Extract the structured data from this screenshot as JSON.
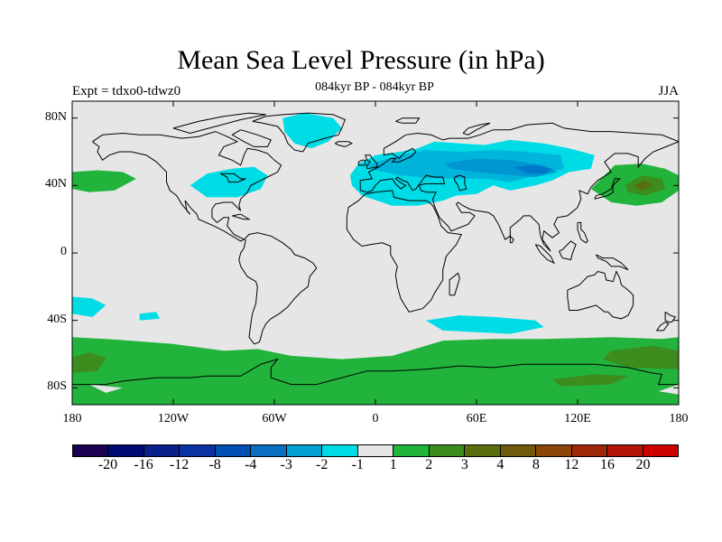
{
  "title": "Mean Sea Level Pressure (in hPa)",
  "subtitle": "084kyr BP - 084kyr BP",
  "experiment_label": "Expt = tdxo0-tdwz0",
  "season": "JJA",
  "map": {
    "projection": "cylindrical-equidistant",
    "lon_range": [
      -180,
      180
    ],
    "lat_range": [
      -90,
      90
    ],
    "x_ticks": [
      {
        "lon": -180,
        "label": "180"
      },
      {
        "lon": -120,
        "label": "120W"
      },
      {
        "lon": -60,
        "label": "60W"
      },
      {
        "lon": 0,
        "label": "0"
      },
      {
        "lon": 60,
        "label": "60E"
      },
      {
        "lon": 120,
        "label": "120E"
      },
      {
        "lon": 180,
        "label": "180"
      }
    ],
    "y_ticks": [
      {
        "lat": 80,
        "label": "80N"
      },
      {
        "lat": 40,
        "label": "40N"
      },
      {
        "lat": 0,
        "label": "0"
      },
      {
        "lat": -40,
        "label": "40S"
      },
      {
        "lat": -80,
        "label": "80S"
      }
    ],
    "colors": {
      "background": "#e6e6e6",
      "neg_1": "#00dce6",
      "neg_2": "#00b4dc",
      "neg_3": "#0096d2",
      "neg_4": "#0078c8",
      "pos_1": "#22b33c",
      "pos_2": "#3c8c1e",
      "pos_3": "#5a6e0f",
      "coast": "#000000"
    },
    "anomalies": [
      {
        "region": "Eurasia",
        "bounds_lon": [
          -15,
          135
        ],
        "bounds_lat": [
          25,
          70
        ],
        "level": "-3 to -1"
      },
      {
        "region": "Greenland",
        "bounds_lon": [
          -55,
          -20
        ],
        "bounds_lat": [
          62,
          82
        ],
        "level": "-2 to -1"
      },
      {
        "region": "North Atlantic west",
        "bounds_lon": [
          -110,
          -65
        ],
        "bounds_lat": [
          32,
          52
        ],
        "level": "-2 to -1"
      },
      {
        "region": "South Atlantic / Indian Ocean",
        "bounds_lon": [
          30,
          100
        ],
        "bounds_lat": [
          -48,
          -38
        ],
        "level": "-2 to -1"
      },
      {
        "region": "South Pacific west",
        "bounds_lon": [
          -180,
          -160
        ],
        "bounds_lat": [
          -38,
          -26
        ],
        "level": "-2 to -1"
      },
      {
        "region": "North Pacific east",
        "bounds_lon": [
          -180,
          -140
        ],
        "bounds_lat": [
          36,
          50
        ],
        "level": "1 to 2"
      },
      {
        "region": "North Pacific west",
        "bounds_lon": [
          130,
          180
        ],
        "bounds_lat": [
          27,
          53
        ],
        "level": "1 to 3"
      },
      {
        "region": "Southern Ocean",
        "bounds_lon": [
          -180,
          180
        ],
        "bounds_lat": [
          -90,
          -50
        ],
        "level": "1 to 3"
      }
    ]
  },
  "colorbar": {
    "colors": [
      "#1e0050",
      "#000a73",
      "#0a1e8c",
      "#0a32a0",
      "#0050b4",
      "#0a6ec3",
      "#00a0d2",
      "#00dce6",
      "#e6e6e6",
      "#22b33c",
      "#3c8c1e",
      "#5a6e0f",
      "#6e5a0a",
      "#8c460a",
      "#a0280a",
      "#b41405",
      "#cd0000"
    ],
    "labels": [
      "-20",
      "-16",
      "-12",
      "-8",
      "-4",
      "-3",
      "-2",
      "-1",
      "1",
      "2",
      "3",
      "4",
      "8",
      "12",
      "16",
      "20"
    ]
  }
}
